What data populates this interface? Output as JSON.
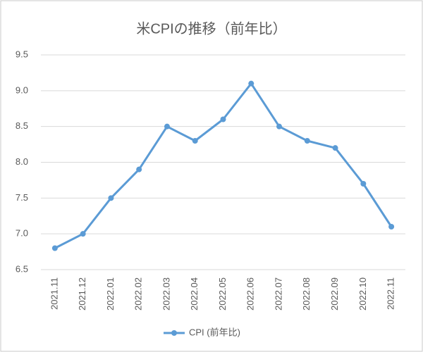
{
  "chart_data": {
    "type": "line",
    "title": "米CPIの推移（前年比）",
    "categories": [
      "2021.11",
      "2021.12",
      "2022.01",
      "2022.02",
      "2022.03",
      "2022.04",
      "2022.05",
      "2022.06",
      "2022.07",
      "2022.08",
      "2022.09",
      "2022.10",
      "2022.11"
    ],
    "series": [
      {
        "name": "CPI (前年比)",
        "color": "#5b9bd5",
        "values": [
          6.8,
          7.0,
          7.5,
          7.9,
          8.5,
          8.3,
          8.6,
          9.1,
          8.5,
          8.3,
          8.2,
          7.7,
          7.1
        ]
      }
    ],
    "ylim": [
      6.5,
      9.5
    ],
    "yticks": [
      6.5,
      {
        "value": 7,
        "label": "7.0"
      },
      7.5,
      {
        "value": 8,
        "label": "8.0"
      },
      8.5,
      {
        "value": 9,
        "label": "9.0"
      },
      9.5
    ],
    "grid": true,
    "legend": "bottom"
  }
}
